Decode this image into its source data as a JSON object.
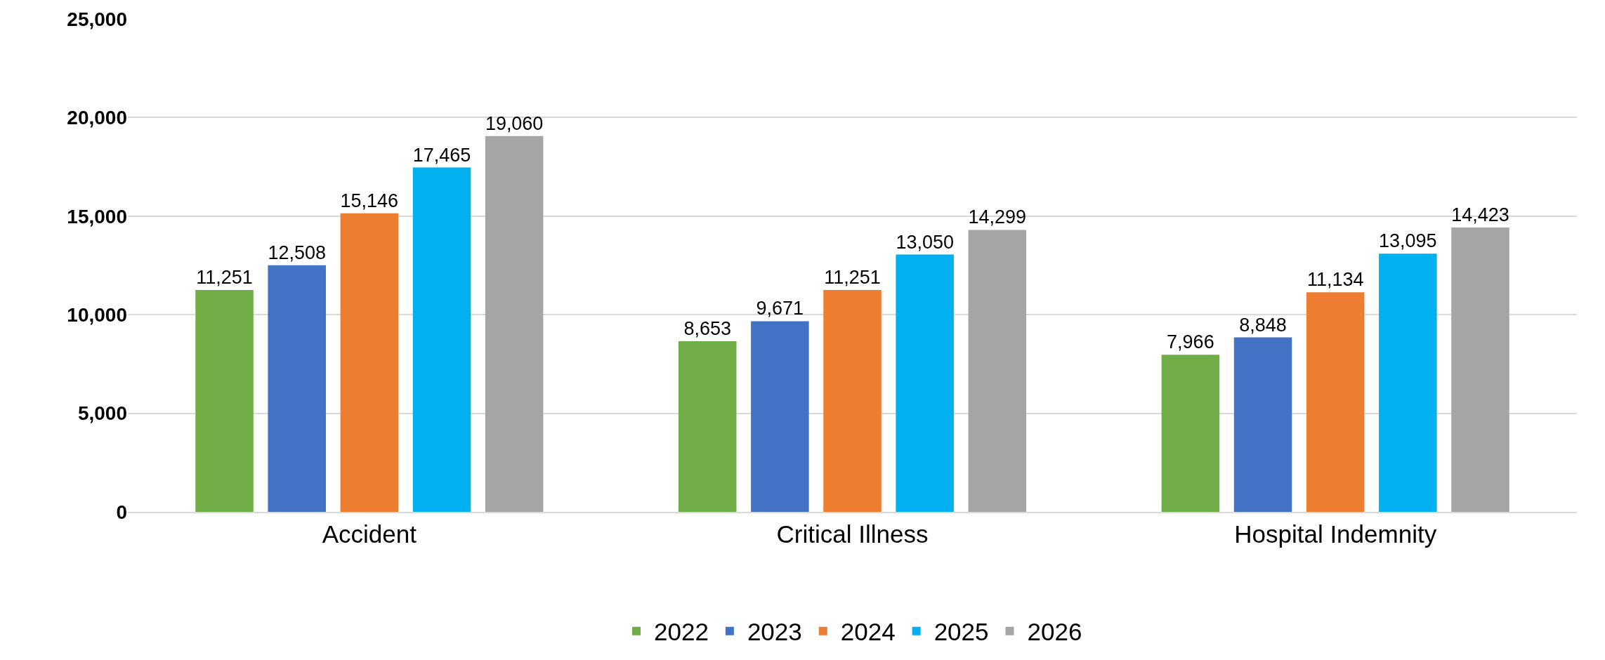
{
  "chart_data": {
    "type": "bar",
    "categories": [
      "Accident",
      "Critical Illness",
      "Hospital Indemnity"
    ],
    "series": [
      {
        "name": "2022",
        "color": "#70ad47",
        "values": [
          11251,
          8653,
          7966
        ],
        "value_labels": [
          "11,251",
          "8,653",
          "7,966"
        ]
      },
      {
        "name": "2023",
        "color": "#4472c4",
        "values": [
          12508,
          9671,
          8848
        ],
        "value_labels": [
          "12,508",
          "9,671",
          "8,848"
        ]
      },
      {
        "name": "2024",
        "color": "#ed7d31",
        "values": [
          15146,
          11251,
          11134
        ],
        "value_labels": [
          "15,146",
          "11,251",
          "11,134"
        ]
      },
      {
        "name": "2025",
        "color": "#00b0f0",
        "values": [
          17465,
          13050,
          13095
        ],
        "value_labels": [
          "17,465",
          "13,050",
          "13,095"
        ]
      },
      {
        "name": "2026",
        "color": "#a5a5a5",
        "values": [
          19060,
          14299,
          14423
        ],
        "value_labels": [
          "19,060",
          "14,299",
          "14,423"
        ]
      }
    ],
    "ylim": [
      0,
      25000
    ],
    "yticks": [
      {
        "value": 0,
        "label": "0"
      },
      {
        "value": 5000,
        "label": "5,000"
      },
      {
        "value": 10000,
        "label": "10,000"
      },
      {
        "value": 15000,
        "label": "15,000"
      },
      {
        "value": 20000,
        "label": "20,000"
      },
      {
        "value": 25000,
        "label": "25,000"
      }
    ],
    "grid": "y",
    "legend": "bottom"
  }
}
